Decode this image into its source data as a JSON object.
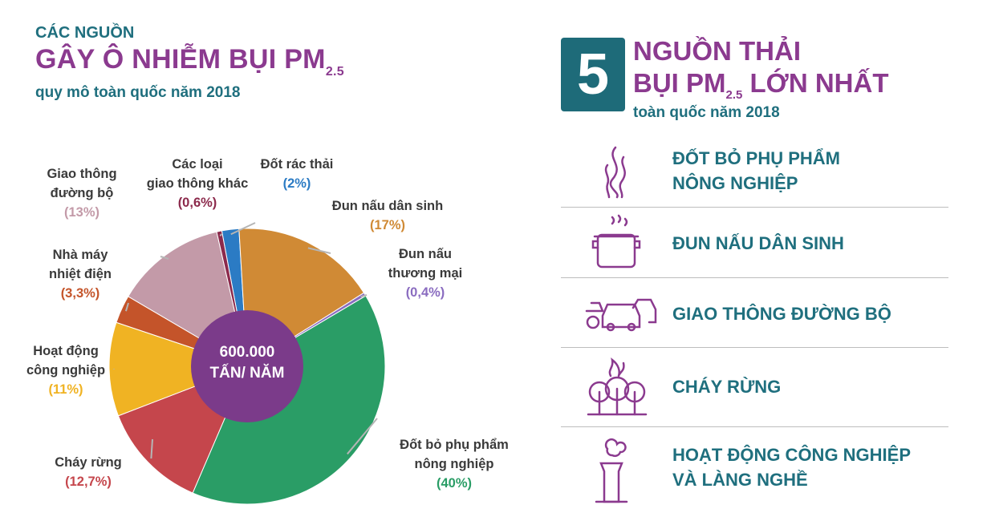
{
  "left": {
    "kicker": "CÁC NGUỒN",
    "title_main": "GÂY Ô NHIỄM BỤI PM",
    "title_sub": "2.5",
    "subtitle": "quy mô toàn quốc năm 2018"
  },
  "chart_data": {
    "type": "pie",
    "center_label_line1": "600.000",
    "center_label_line2": "TẤN/ NĂM",
    "slices": [
      {
        "label_lines": [
          "Đốt rác thải"
        ],
        "pct_label": "(2%)",
        "value": 2,
        "color": "#2b7bc4"
      },
      {
        "label_lines": [
          "Đun nấu dân sinh"
        ],
        "pct_label": "(17%)",
        "value": 17,
        "color": "#d08a35"
      },
      {
        "label_lines": [
          "Đun nấu",
          "thương mại"
        ],
        "pct_label": "(0,4%)",
        "value": 0.4,
        "color": "#8a6cc0"
      },
      {
        "label_lines": [
          "Đốt bỏ phụ phẩm",
          "nông nghiệp"
        ],
        "pct_label": "(40%)",
        "value": 40,
        "color": "#2a9d66"
      },
      {
        "label_lines": [
          "Cháy rừng"
        ],
        "pct_label": "(12,7%)",
        "value": 12.7,
        "color": "#c5464c"
      },
      {
        "label_lines": [
          "Hoạt động",
          "công nghiệp"
        ],
        "pct_label": "(11%)",
        "value": 11,
        "color": "#f0b323"
      },
      {
        "label_lines": [
          "Nhà máy",
          "nhiệt điện"
        ],
        "pct_label": "(3,3%)",
        "value": 3.3,
        "color": "#c4542a"
      },
      {
        "label_lines": [
          "Giao thông",
          "đường bộ"
        ],
        "pct_label": "(13%)",
        "value": 13,
        "color": "#c39aa8"
      },
      {
        "label_lines": [
          "Các loại",
          "giao thông khác"
        ],
        "pct_label": "(0,6%)",
        "value": 0.6,
        "color": "#8c2a4c"
      }
    ]
  },
  "right": {
    "number": "5",
    "title_line1": "NGUỒN THẢI",
    "title_line2_a": "BỤI PM",
    "title_line2_sub": "2.5",
    "title_line2_b": " LỚN NHẤT",
    "subtitle": "toàn quốc năm 2018",
    "items": [
      {
        "text_lines": [
          "ĐỐT BỎ PHỤ PHẨM",
          "NÔNG NGHIỆP"
        ],
        "icon": "flame-icon"
      },
      {
        "text_lines": [
          "ĐUN NẤU DÂN SINH"
        ],
        "icon": "cooking-pot-icon"
      },
      {
        "text_lines": [
          "GIAO THÔNG ĐƯỜNG BỘ"
        ],
        "icon": "vehicles-icon"
      },
      {
        "text_lines": [
          "CHÁY RỪNG"
        ],
        "icon": "forest-fire-icon"
      },
      {
        "text_lines": [
          "HOẠT ĐỘNG CÔNG NGHIỆP",
          "VÀ LÀNG NGHỀ"
        ],
        "icon": "factory-chimney-icon"
      }
    ],
    "accent": "#8b3a8f",
    "teal": "#1f6f7e"
  }
}
